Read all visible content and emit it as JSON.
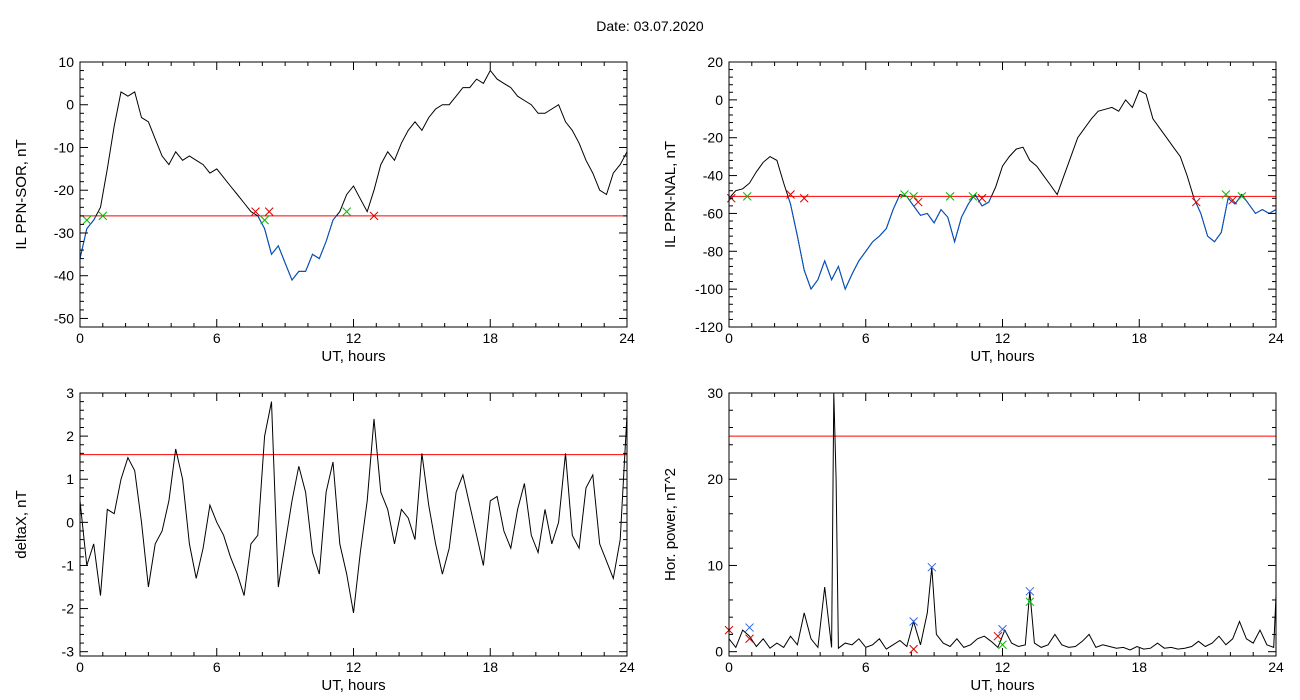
{
  "page": {
    "title": "Date:  03.07.2020"
  },
  "chart_data": [
    {
      "type": "line",
      "id": "ppn-sor",
      "xlabel": "UT, hours",
      "ylabel": "IL PPN-SOR, nT",
      "xlim": [
        0,
        24
      ],
      "ylim": [
        -52,
        10
      ],
      "xticks": [
        0,
        6,
        12,
        18,
        24
      ],
      "yticks": [
        -50,
        -40,
        -30,
        -20,
        -10,
        0,
        10
      ],
      "threshold": -26,
      "threshold_color": "#ff0000",
      "line_color": "#000000",
      "below_color": "#0055cc",
      "x": [
        0,
        0.3,
        0.6,
        0.9,
        1.2,
        1.5,
        1.8,
        2.1,
        2.4,
        2.7,
        3.0,
        3.3,
        3.6,
        3.9,
        4.2,
        4.5,
        4.8,
        5.1,
        5.4,
        5.7,
        6.0,
        6.3,
        6.6,
        6.9,
        7.2,
        7.5,
        7.8,
        8.1,
        8.4,
        8.7,
        9.0,
        9.3,
        9.6,
        9.9,
        10.2,
        10.5,
        10.8,
        11.1,
        11.4,
        11.7,
        12.0,
        12.3,
        12.6,
        12.9,
        13.2,
        13.5,
        13.8,
        14.1,
        14.4,
        14.7,
        15.0,
        15.3,
        15.6,
        15.9,
        16.2,
        16.5,
        16.8,
        17.1,
        17.4,
        17.7,
        18.0,
        18.3,
        18.6,
        18.9,
        19.2,
        19.5,
        19.8,
        20.1,
        20.4,
        20.7,
        21.0,
        21.3,
        21.6,
        21.9,
        22.2,
        22.5,
        22.8,
        23.1,
        23.4,
        23.7,
        24.0
      ],
      "y": [
        -36,
        -29,
        -27,
        -24,
        -15,
        -5,
        3,
        2,
        3,
        -3,
        -4,
        -8,
        -12,
        -14,
        -11,
        -13,
        -12,
        -13,
        -14,
        -16,
        -15,
        -17,
        -19,
        -21,
        -23,
        -25,
        -26,
        -29,
        -35,
        -33,
        -37,
        -41,
        -39,
        -39,
        -35,
        -36,
        -32,
        -27,
        -25,
        -21,
        -19,
        -22,
        -25,
        -20,
        -14,
        -11,
        -13,
        -9,
        -6,
        -4,
        -6,
        -3,
        -1,
        0,
        0,
        2,
        4,
        4,
        6,
        5,
        8,
        6,
        5,
        4,
        2,
        1,
        0,
        -2,
        -2,
        -1,
        0,
        -4,
        -6,
        -9,
        -13,
        -16,
        -20,
        -21,
        -16,
        -14,
        -11
      ],
      "markers": [
        {
          "x": 0.3,
          "y": -27,
          "color": "#00bb00"
        },
        {
          "x": 1.0,
          "y": -26,
          "color": "#00bb00"
        },
        {
          "x": 7.7,
          "y": -25,
          "color": "#dd0000"
        },
        {
          "x": 8.1,
          "y": -27,
          "color": "#00bb00"
        },
        {
          "x": 8.3,
          "y": -25,
          "color": "#dd0000"
        },
        {
          "x": 11.7,
          "y": -25,
          "color": "#00bb00"
        },
        {
          "x": 12.9,
          "y": -26,
          "color": "#dd0000"
        }
      ]
    },
    {
      "type": "line",
      "id": "ppn-nal",
      "xlabel": "UT, hours",
      "ylabel": "IL PPN-NAL, nT",
      "xlim": [
        0,
        24
      ],
      "ylim": [
        -120,
        20
      ],
      "xticks": [
        0,
        6,
        12,
        18,
        24
      ],
      "yticks": [
        -120,
        -100,
        -80,
        -60,
        -40,
        -20,
        0,
        20
      ],
      "threshold": -51,
      "threshold_color": "#ff0000",
      "line_color": "#000000",
      "below_color": "#0055cc",
      "x": [
        0,
        0.3,
        0.6,
        0.9,
        1.2,
        1.5,
        1.8,
        2.1,
        2.4,
        2.7,
        3.0,
        3.3,
        3.6,
        3.9,
        4.2,
        4.5,
        4.8,
        5.1,
        5.4,
        5.7,
        6.0,
        6.3,
        6.6,
        6.9,
        7.2,
        7.5,
        7.8,
        8.1,
        8.4,
        8.7,
        9.0,
        9.3,
        9.6,
        9.9,
        10.2,
        10.5,
        10.8,
        11.1,
        11.4,
        11.7,
        12.0,
        12.3,
        12.6,
        12.9,
        13.2,
        13.5,
        13.8,
        14.1,
        14.4,
        14.7,
        15.0,
        15.3,
        15.6,
        15.9,
        16.2,
        16.5,
        16.8,
        17.1,
        17.4,
        17.7,
        18.0,
        18.3,
        18.6,
        18.9,
        19.2,
        19.5,
        19.8,
        20.1,
        20.4,
        20.7,
        21.0,
        21.3,
        21.6,
        21.9,
        22.2,
        22.5,
        22.8,
        23.1,
        23.4,
        23.7,
        24.0
      ],
      "y": [
        -52,
        -48,
        -47,
        -44,
        -38,
        -33,
        -30,
        -32,
        -44,
        -55,
        -72,
        -90,
        -100,
        -95,
        -85,
        -95,
        -88,
        -100,
        -92,
        -85,
        -80,
        -75,
        -72,
        -68,
        -58,
        -50,
        -51,
        -56,
        -61,
        -60,
        -65,
        -58,
        -62,
        -75,
        -62,
        -55,
        -50,
        -56,
        -54,
        -46,
        -35,
        -30,
        -26,
        -25,
        -32,
        -35,
        -40,
        -45,
        -50,
        -40,
        -30,
        -20,
        -15,
        -10,
        -6,
        -5,
        -4,
        -6,
        0,
        -4,
        5,
        3,
        -10,
        -15,
        -20,
        -25,
        -30,
        -40,
        -52,
        -60,
        -72,
        -75,
        -70,
        -52,
        -55,
        -50,
        -55,
        -60,
        -58,
        -60,
        -58
      ],
      "markers": [
        {
          "x": 0.1,
          "y": -52,
          "color": "#dd0000"
        },
        {
          "x": 0.8,
          "y": -51,
          "color": "#00bb00"
        },
        {
          "x": 2.7,
          "y": -50,
          "color": "#dd0000"
        },
        {
          "x": 3.3,
          "y": -52,
          "color": "#dd0000"
        },
        {
          "x": 7.7,
          "y": -50,
          "color": "#00bb00"
        },
        {
          "x": 8.1,
          "y": -51,
          "color": "#00bb00"
        },
        {
          "x": 8.3,
          "y": -54,
          "color": "#dd0000"
        },
        {
          "x": 9.7,
          "y": -51,
          "color": "#00bb00"
        },
        {
          "x": 10.7,
          "y": -51,
          "color": "#00bb00"
        },
        {
          "x": 11.1,
          "y": -52,
          "color": "#dd0000"
        },
        {
          "x": 20.5,
          "y": -54,
          "color": "#dd0000"
        },
        {
          "x": 21.8,
          "y": -50,
          "color": "#00bb00"
        },
        {
          "x": 22.1,
          "y": -53,
          "color": "#dd0000"
        },
        {
          "x": 22.5,
          "y": -51,
          "color": "#00bb00"
        }
      ]
    },
    {
      "type": "line",
      "id": "deltax",
      "xlabel": "UT, hours",
      "ylabel": "deltaX, nT",
      "xlim": [
        0,
        24
      ],
      "ylim": [
        -3.1,
        3.0
      ],
      "xticks": [
        0,
        6,
        12,
        18,
        24
      ],
      "yticks": [
        -3,
        -2,
        -1,
        0,
        1,
        2,
        3
      ],
      "threshold": 1.57,
      "threshold_color": "#ff0000",
      "line_color": "#000000",
      "x": [
        0,
        0.3,
        0.6,
        0.9,
        1.2,
        1.5,
        1.8,
        2.1,
        2.4,
        2.7,
        3.0,
        3.3,
        3.6,
        3.9,
        4.2,
        4.5,
        4.8,
        5.1,
        5.4,
        5.7,
        6.0,
        6.3,
        6.6,
        6.9,
        7.2,
        7.5,
        7.8,
        8.1,
        8.4,
        8.7,
        9.0,
        9.3,
        9.6,
        9.9,
        10.2,
        10.5,
        10.8,
        11.1,
        11.4,
        11.7,
        12.0,
        12.3,
        12.6,
        12.9,
        13.2,
        13.5,
        13.8,
        14.1,
        14.4,
        14.7,
        15.0,
        15.3,
        15.6,
        15.9,
        16.2,
        16.5,
        16.8,
        17.1,
        17.4,
        17.7,
        18.0,
        18.3,
        18.6,
        18.9,
        19.2,
        19.5,
        19.8,
        20.1,
        20.4,
        20.7,
        21.0,
        21.3,
        21.6,
        21.9,
        22.2,
        22.5,
        22.8,
        23.1,
        23.4,
        23.7,
        24.0
      ],
      "y": [
        0.5,
        -1.0,
        -0.5,
        -1.7,
        0.3,
        0.2,
        1.0,
        1.5,
        1.2,
        0.0,
        -1.5,
        -0.5,
        -0.2,
        0.5,
        1.7,
        1.0,
        -0.5,
        -1.3,
        -0.6,
        0.4,
        0.0,
        -0.3,
        -0.8,
        -1.2,
        -1.7,
        -0.5,
        -0.3,
        2.0,
        2.8,
        -1.5,
        -0.5,
        0.5,
        1.3,
        0.7,
        -0.7,
        -1.2,
        0.7,
        1.4,
        -0.5,
        -1.2,
        -2.1,
        -0.7,
        0.5,
        2.4,
        0.7,
        0.3,
        -0.5,
        0.3,
        0.1,
        -0.4,
        1.6,
        0.4,
        -0.5,
        -1.2,
        -0.6,
        0.7,
        1.1,
        0.4,
        -0.3,
        -1.0,
        0.5,
        0.6,
        -0.2,
        -0.6,
        0.3,
        0.9,
        -0.3,
        -0.7,
        0.3,
        -0.5,
        0.0,
        1.6,
        -0.3,
        -0.6,
        0.8,
        1.1,
        -0.5,
        -0.9,
        -1.3,
        -0.4,
        2.5
      ]
    },
    {
      "type": "line",
      "id": "hor-power",
      "xlabel": "UT, hours",
      "ylabel": "Hor. power, nT^2",
      "xlim": [
        0,
        24
      ],
      "ylim": [
        -0.5,
        30
      ],
      "xticks": [
        0,
        6,
        12,
        18,
        24
      ],
      "yticks": [
        0,
        10,
        20,
        30
      ],
      "threshold": 25,
      "threshold_color": "#ff0000",
      "line_color": "#000000",
      "x": [
        0,
        0.3,
        0.6,
        0.9,
        1.2,
        1.5,
        1.8,
        2.1,
        2.4,
        2.7,
        3.0,
        3.3,
        3.6,
        3.9,
        4.2,
        4.5,
        4.6,
        4.7,
        4.8,
        5.1,
        5.4,
        5.7,
        6.0,
        6.3,
        6.6,
        6.9,
        7.2,
        7.5,
        7.8,
        8.1,
        8.4,
        8.7,
        8.9,
        9.1,
        9.4,
        9.7,
        10.0,
        10.3,
        10.6,
        10.9,
        11.2,
        11.5,
        11.8,
        12.1,
        12.4,
        12.7,
        13.0,
        13.2,
        13.4,
        13.7,
        14.0,
        14.3,
        14.6,
        14.9,
        15.2,
        15.5,
        15.8,
        16.1,
        16.4,
        16.7,
        17.0,
        17.3,
        17.6,
        17.9,
        18.2,
        18.5,
        18.8,
        19.1,
        19.4,
        19.7,
        20.0,
        20.3,
        20.6,
        20.9,
        21.2,
        21.5,
        21.8,
        22.1,
        22.4,
        22.7,
        23.0,
        23.3,
        23.6,
        23.9,
        24.0
      ],
      "y": [
        1.5,
        0.5,
        2.5,
        1.8,
        0.6,
        1.5,
        0.4,
        1.0,
        0.5,
        1.8,
        0.8,
        4.5,
        1.5,
        0.5,
        7.5,
        0.5,
        30.0,
        20.0,
        0.4,
        1.0,
        0.8,
        1.5,
        0.5,
        0.8,
        1.5,
        0.3,
        0.8,
        1.3,
        0.6,
        3.5,
        0.8,
        4.5,
        9.8,
        2.0,
        1.0,
        0.6,
        1.5,
        0.5,
        0.8,
        1.5,
        1.8,
        1.2,
        0.5,
        2.5,
        1.0,
        0.6,
        0.8,
        7.0,
        1.0,
        0.5,
        0.8,
        2.0,
        0.8,
        0.5,
        0.6,
        1.2,
        2.0,
        0.5,
        0.8,
        0.6,
        0.4,
        0.5,
        0.2,
        0.6,
        0.3,
        0.4,
        1.0,
        0.4,
        0.5,
        0.3,
        0.4,
        0.6,
        1.2,
        0.6,
        1.0,
        1.8,
        0.8,
        1.5,
        3.5,
        1.5,
        1.0,
        2.5,
        0.8,
        0.5,
        6.5
      ],
      "markers": [
        {
          "x": 0.0,
          "y": 2.5,
          "color": "#dd0000"
        },
        {
          "x": 0.9,
          "y": 1.5,
          "color": "#dd0000"
        },
        {
          "x": 0.9,
          "y": 2.8,
          "color": "#3366dd"
        },
        {
          "x": 8.1,
          "y": 3.5,
          "color": "#3366dd"
        },
        {
          "x": 8.1,
          "y": 0.3,
          "color": "#dd0000"
        },
        {
          "x": 8.9,
          "y": 9.8,
          "color": "#3366dd"
        },
        {
          "x": 11.8,
          "y": 1.8,
          "color": "#dd0000"
        },
        {
          "x": 12.0,
          "y": 2.6,
          "color": "#3366dd"
        },
        {
          "x": 13.2,
          "y": 7.0,
          "color": "#3366dd"
        },
        {
          "x": 13.2,
          "y": 5.8,
          "color": "#00bb00"
        },
        {
          "x": 12.0,
          "y": 0.8,
          "color": "#00bb00"
        }
      ]
    }
  ]
}
